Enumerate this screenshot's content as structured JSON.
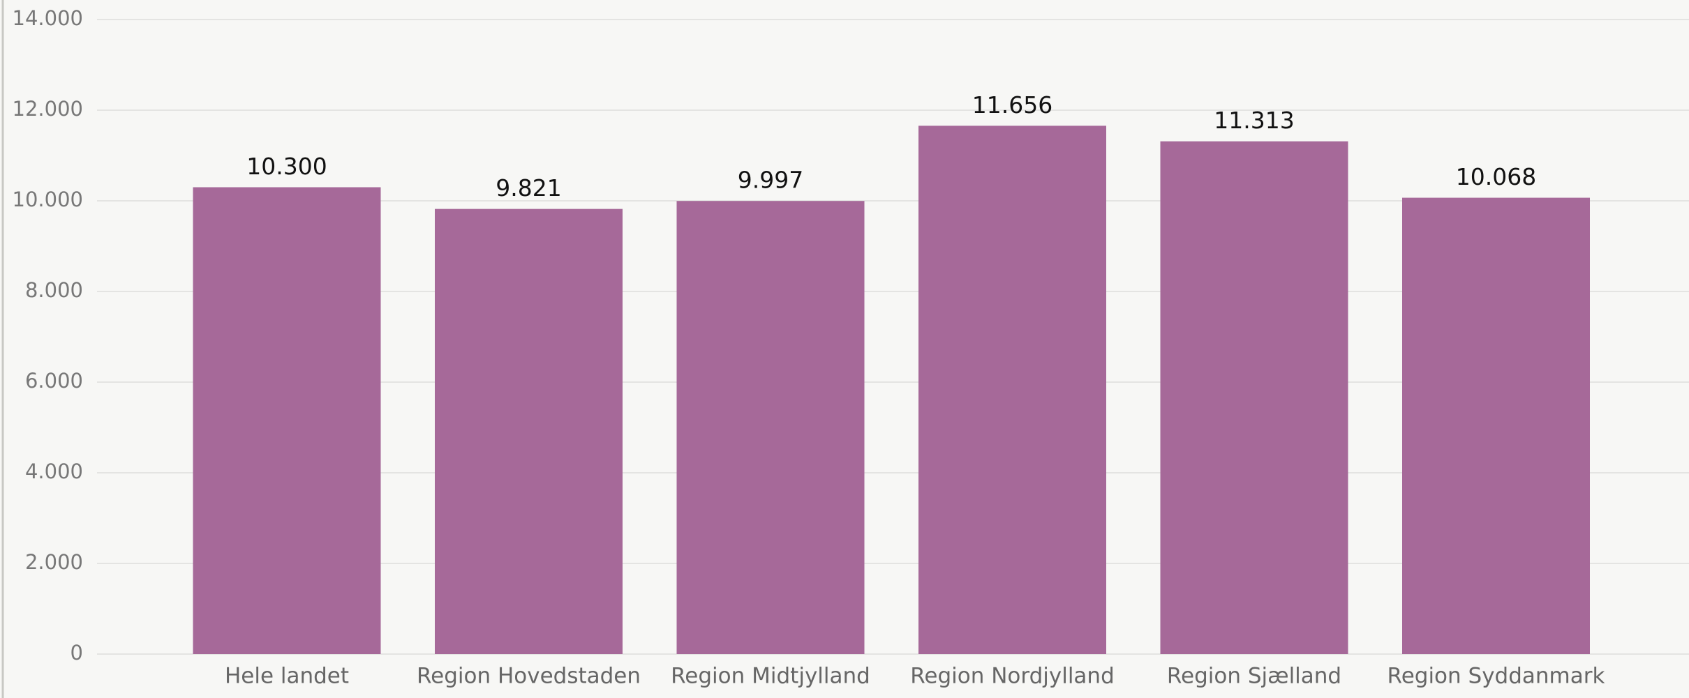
{
  "chart_data": {
    "type": "bar",
    "categories": [
      "Hele landet",
      "Region Hovedstaden",
      "Region Midtjylland",
      "Region Nordjylland",
      "Region Sjælland",
      "Region Syddanmark"
    ],
    "values": [
      10300,
      9821,
      9997,
      11656,
      11313,
      10068
    ],
    "value_labels": [
      "10.300",
      "9.821",
      "9.997",
      "11.656",
      "11.313",
      "10.068"
    ],
    "color": "#a66999",
    "ylim": [
      0,
      14000
    ],
    "yticks": [
      0,
      {
        "value": 2000,
        "label": "2.000"
      },
      {
        "value": 4000,
        "label": "4.000"
      },
      {
        "value": 6000,
        "label": "6.000"
      },
      {
        "value": 8000,
        "label": "8.000"
      },
      {
        "value": 10000,
        "label": "10.000"
      },
      {
        "value": 12000,
        "label": "12.000"
      },
      {
        "value": 14000,
        "label": "14.000"
      }
    ],
    "grid": true
  }
}
